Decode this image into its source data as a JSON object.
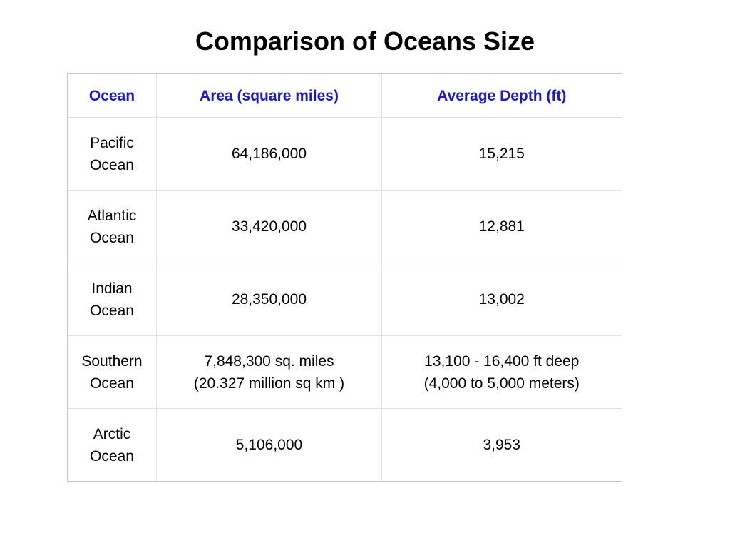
{
  "title": "Comparison of Oceans Size",
  "table": {
    "header": [
      "Ocean",
      "Area (square miles)",
      "Average Depth (ft)"
    ],
    "rows": [
      [
        [
          "Pacific Ocean"
        ],
        [
          "64,186,000"
        ],
        [
          "15,215"
        ]
      ],
      [
        [
          "Atlantic Ocean"
        ],
        [
          "33,420,000"
        ],
        [
          "12,881"
        ]
      ],
      [
        [
          "Indian Ocean"
        ],
        [
          "28,350,000"
        ],
        [
          "13,002"
        ]
      ],
      [
        [
          "Southern Ocean"
        ],
        [
          "7,848,300 sq. miles",
          "(20.327 million sq km )"
        ],
        [
          "13,100 - 16,400 ft deep",
          "(4,000 to 5,000 meters)"
        ]
      ],
      [
        [
          "Arctic Ocean"
        ],
        [
          "5,106,000"
        ],
        [
          "3,953"
        ]
      ]
    ]
  }
}
